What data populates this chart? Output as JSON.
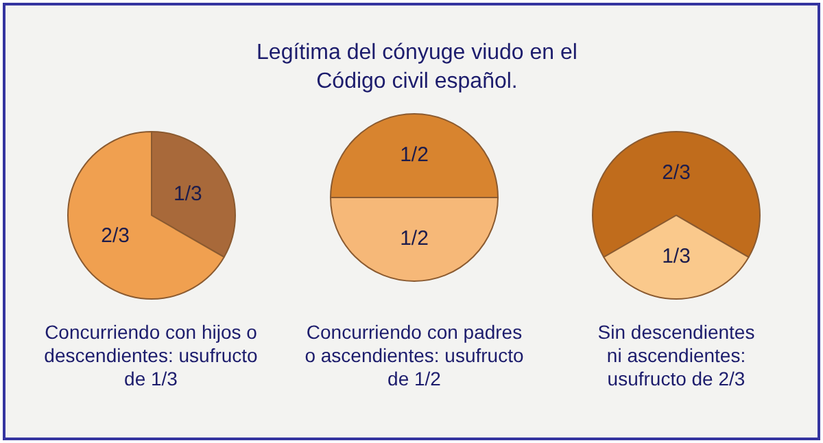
{
  "chart_data": [
    {
      "type": "other",
      "title": "Legítima del cónyuge viudo en el Código civil español."
    },
    {
      "type": "pie",
      "categories": [
        null,
        null
      ],
      "values": [
        0.3333,
        0.6667
      ],
      "colors": [
        "#a8693a",
        "#f0a050"
      ],
      "value_labels": [
        "1/3",
        "2/3"
      ],
      "xlabel": "Concurriendo con hijos o descendientes: usufructo de 1/3"
    },
    {
      "type": "pie",
      "categories": [
        null,
        null
      ],
      "values": [
        0.5,
        0.5
      ],
      "colors": [
        "#d8842f",
        "#f6b878"
      ],
      "value_labels": [
        "1/2",
        "1/2"
      ],
      "xlabel": "Concurriendo con padres o ascendientes: usufructo de 1/2"
    },
    {
      "type": "pie",
      "categories": [
        null,
        null
      ],
      "values": [
        0.6667,
        0.3333
      ],
      "colors": [
        "#c06c1c",
        "#fac98c"
      ],
      "value_labels": [
        "2/3",
        "1/3"
      ],
      "xlabel": "Sin descendientes ni ascendientes: usufructo de 2/3"
    }
  ]
}
